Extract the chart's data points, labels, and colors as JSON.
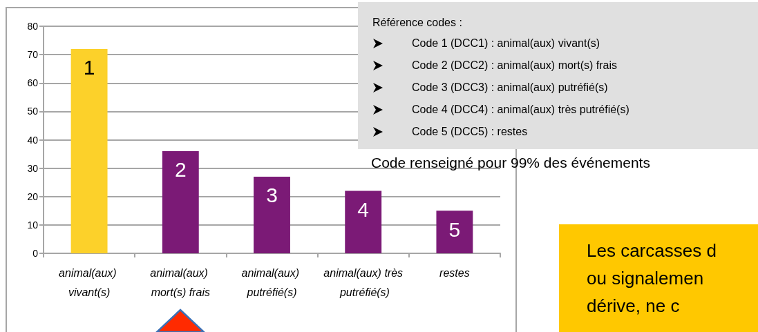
{
  "chart_data": {
    "type": "bar",
    "categories": [
      "animal(aux) vivant(s)",
      "animal(aux) mort(s) frais",
      "animal(aux) putréfié(s)",
      "animal(aux) très putréfié(s)",
      "restes"
    ],
    "values": [
      72,
      36,
      27,
      22,
      15
    ],
    "colors": [
      "#fcd12a",
      "#7b1a76",
      "#7b1a76",
      "#7b1a76",
      "#7b1a76"
    ],
    "ylim": [
      0,
      80
    ],
    "yticks": [
      0,
      10,
      20,
      30,
      40,
      50,
      60,
      70,
      80
    ],
    "grid": "y",
    "annotations": [
      "Référence codes :",
      "Code 1 (DCC1) : animal(aux) vivant(s)",
      "Code 2 (DCC2) : animal(aux) mort(s) frais",
      "Code 3 (DCC3) : animal(aux) putréfié(s)",
      "Code 4 (DCC4) : animal(aux) très putréfié(s)",
      "Code 5 (DCC5) : restes",
      "Code renseigné pour 99% des événements",
      "Les carcasses d\nou signalemen\ndérive, ne c",
      "1",
      "2",
      "3",
      "4",
      "5"
    ]
  }
}
